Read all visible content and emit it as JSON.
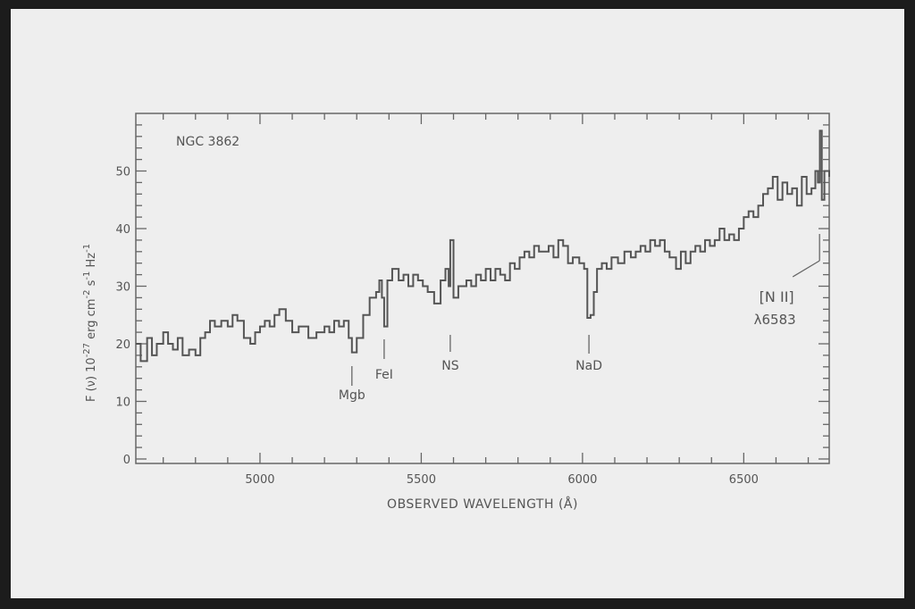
{
  "chart_data": {
    "type": "line",
    "style": "step",
    "title": "NGC 3862",
    "xlabel": "OBSERVED WAVELENGTH (Å)",
    "ylabel": "F (ν) 10^-27 erg cm^-2 s^-1 Hz^-1",
    "ylabel_parts": {
      "a": "F (ν) 10",
      "exp1": "-27",
      "b": " erg cm",
      "exp2": "-2",
      "c": " s",
      "exp3": "-1",
      "d": " Hz",
      "exp4": "-1"
    },
    "xlim": [
      4615,
      6765
    ],
    "ylim": [
      0,
      60
    ],
    "xticks": [
      5000,
      5500,
      6000,
      6500
    ],
    "yticks": [
      0,
      10,
      20,
      30,
      40,
      50
    ],
    "grid": false,
    "line_color": "#555555",
    "x": [
      4615,
      4630,
      4650,
      4665,
      4680,
      4700,
      4715,
      4730,
      4745,
      4760,
      4780,
      4800,
      4815,
      4830,
      4845,
      4860,
      4880,
      4900,
      4915,
      4930,
      4950,
      4970,
      4985,
      5000,
      5015,
      5030,
      5045,
      5060,
      5080,
      5100,
      5120,
      5150,
      5175,
      5200,
      5215,
      5230,
      5245,
      5260,
      5275,
      5285,
      5300,
      5320,
      5340,
      5360,
      5370,
      5378,
      5385,
      5395,
      5410,
      5430,
      5445,
      5460,
      5475,
      5490,
      5505,
      5520,
      5540,
      5560,
      5575,
      5585,
      5590,
      5600,
      5615,
      5640,
      5655,
      5670,
      5685,
      5700,
      5715,
      5730,
      5745,
      5760,
      5775,
      5790,
      5805,
      5820,
      5835,
      5850,
      5865,
      5880,
      5895,
      5910,
      5925,
      5940,
      5955,
      5970,
      5990,
      6005,
      6015,
      6025,
      6035,
      6045,
      6060,
      6075,
      6090,
      6110,
      6130,
      6150,
      6165,
      6180,
      6195,
      6210,
      6225,
      6240,
      6255,
      6270,
      6290,
      6305,
      6320,
      6335,
      6350,
      6365,
      6380,
      6395,
      6410,
      6425,
      6440,
      6455,
      6470,
      6485,
      6500,
      6515,
      6530,
      6545,
      6560,
      6575,
      6590,
      6605,
      6620,
      6635,
      6650,
      6665,
      6680,
      6695,
      6710,
      6722,
      6730,
      6736,
      6742,
      6750,
      6765
    ],
    "y": [
      20,
      17,
      21,
      18,
      20,
      22,
      20,
      19,
      21,
      18,
      19,
      18,
      21,
      22,
      24,
      23,
      24,
      23,
      25,
      24,
      21,
      20,
      22,
      23,
      24,
      23,
      25,
      26,
      24,
      22,
      23,
      21,
      22,
      23,
      22,
      24,
      23,
      24,
      21,
      18.5,
      21,
      25,
      28,
      29,
      31,
      28,
      23,
      31,
      33,
      31,
      32,
      30,
      32,
      31,
      30,
      29,
      27,
      31,
      33,
      30,
      38,
      28,
      30,
      31,
      30,
      32,
      31,
      33,
      31,
      33,
      32,
      31,
      34,
      33,
      35,
      36,
      35,
      37,
      36,
      36,
      37,
      35,
      38,
      37,
      34,
      35,
      34,
      33,
      24.5,
      25,
      29,
      33,
      34,
      33,
      35,
      34,
      36,
      35,
      36,
      37,
      36,
      38,
      37,
      38,
      36,
      35,
      33,
      36,
      34,
      36,
      37,
      36,
      38,
      37,
      38,
      40,
      38,
      39,
      38,
      40,
      42,
      43,
      42,
      44,
      46,
      47,
      49,
      45,
      48,
      46,
      47,
      44,
      49,
      46,
      47,
      50,
      48,
      57,
      45,
      50,
      49
    ],
    "annotations": [
      {
        "label": "Mgb",
        "x": 5285
      },
      {
        "label": "FeI",
        "x": 5385
      },
      {
        "label": "NS",
        "x": 5590
      },
      {
        "label": "NaD",
        "x": 6020
      },
      {
        "label": "[N II]",
        "sub": "λ6583",
        "x": 6735
      }
    ]
  }
}
